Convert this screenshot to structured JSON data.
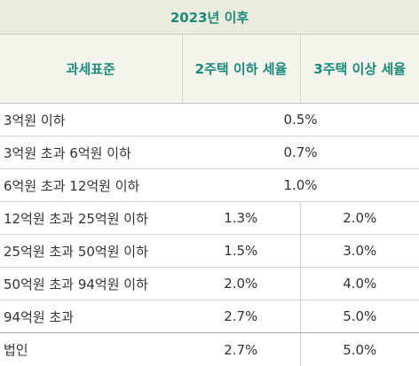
{
  "title": "2023년 이후",
  "headers": {
    "tax_base": "과세표준",
    "two_or_less": "2주택 이하 세율",
    "three_or_more": "3주택 이상 세율"
  },
  "rows": [
    {
      "label": "3억원 이하",
      "merged": "0.5%"
    },
    {
      "label": "3억원 초과 6억원 이하",
      "merged": "0.7%"
    },
    {
      "label": "6억원 초과 12억원 이하",
      "merged": "1.0%"
    },
    {
      "label": "12억원 초과 25억원 이하",
      "two": "1.3%",
      "three": "2.0%"
    },
    {
      "label": "25억원 초과 50억원 이하",
      "two": "1.5%",
      "three": "3.0%"
    },
    {
      "label": "50억원 초과 94억원 이하",
      "two": "2.0%",
      "three": "4.0%"
    },
    {
      "label": "94억원 초과",
      "two": "2.7%",
      "three": "5.0%"
    },
    {
      "label": "법인",
      "two": "2.7%",
      "three": "5.0%"
    }
  ],
  "colors": {
    "accent": "#1a8a7a",
    "title_bg": "#ebebde",
    "header_bg": "#f4f4ec"
  }
}
